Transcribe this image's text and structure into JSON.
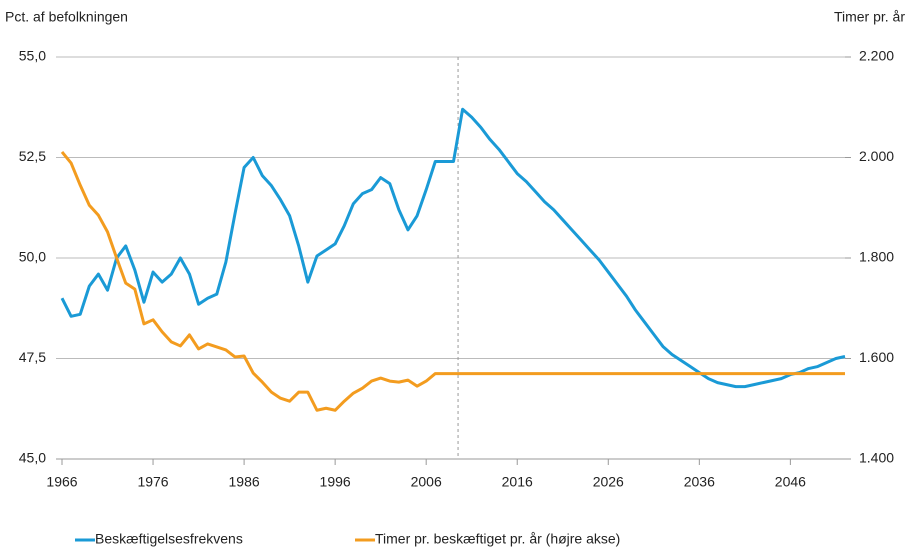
{
  "chart_data": {
    "type": "line",
    "y_label": "Pct. af befolkningen",
    "y2_label": "Timer pr. år",
    "x": [
      1966,
      1967,
      1968,
      1969,
      1970,
      1971,
      1972,
      1973,
      1974,
      1975,
      1976,
      1977,
      1978,
      1979,
      1980,
      1981,
      1982,
      1983,
      1984,
      1985,
      1986,
      1987,
      1988,
      1989,
      1990,
      1991,
      1992,
      1993,
      1994,
      1995,
      1996,
      1997,
      1998,
      1999,
      2000,
      2001,
      2002,
      2003,
      2004,
      2005,
      2006,
      2007,
      2008,
      2009,
      2010,
      2011,
      2012,
      2013,
      2014,
      2015,
      2016,
      2017,
      2018,
      2019,
      2020,
      2021,
      2022,
      2023,
      2024,
      2025,
      2026,
      2027,
      2028,
      2029,
      2030,
      2031,
      2032,
      2033,
      2034,
      2035,
      2036,
      2037,
      2038,
      2039,
      2040,
      2041,
      2042,
      2043,
      2044,
      2045,
      2046,
      2047,
      2048,
      2049,
      2050,
      2051,
      2052
    ],
    "series": [
      {
        "name": "Beskæftigelsesfrekvens",
        "color": "#1a9ad6",
        "values": [
          49.0,
          48.55,
          48.6,
          49.3,
          49.6,
          49.2,
          50.0,
          50.3,
          49.7,
          48.9,
          49.65,
          49.4,
          49.6,
          50.0,
          49.6,
          48.85,
          49.0,
          49.1,
          49.9,
          51.1,
          52.25,
          52.5,
          52.05,
          51.8,
          51.45,
          51.05,
          50.3,
          49.4,
          50.05,
          50.2,
          50.35,
          50.8,
          51.35,
          51.6,
          51.7,
          52.0,
          51.85,
          51.2,
          50.7,
          51.05,
          51.7,
          52.4,
          52.4,
          52.4,
          53.7,
          53.5,
          53.25,
          52.95,
          52.7,
          52.4,
          52.1,
          51.9,
          51.65,
          51.4,
          51.2,
          50.95,
          50.7,
          50.45,
          50.2,
          49.95,
          49.65,
          49.35,
          49.05,
          48.7,
          48.4,
          48.1,
          47.8,
          47.6,
          47.45,
          47.3,
          47.15,
          47.0,
          46.9,
          46.85,
          46.8,
          46.8,
          46.85,
          46.9,
          46.95,
          47.0,
          47.1,
          47.15,
          47.25,
          47.3,
          47.4,
          47.5,
          47.55
        ]
      },
      {
        "name": "Timer pr. beskæftiget pr. år  (højre akse)",
        "color": "#f39c1f",
        "axis": "y2",
        "values": [
          2011,
          1989,
          1945,
          1905,
          1885,
          1852,
          1800,
          1750,
          1738,
          1669,
          1677,
          1653,
          1633,
          1625,
          1647,
          1619,
          1629,
          1623,
          1617,
          1603,
          1605,
          1571,
          1553,
          1533,
          1521,
          1515,
          1533,
          1533,
          1497,
          1501,
          1497,
          1515,
          1531,
          1541,
          1555,
          1561,
          1555,
          1553,
          1557,
          1545,
          1555,
          1570,
          1570,
          1570,
          1570,
          1570,
          1570,
          1570,
          1570,
          1570,
          1570,
          1570,
          1570,
          1570,
          1570,
          1570,
          1570,
          1570,
          1570,
          1570,
          1570,
          1570,
          1570,
          1570,
          1570,
          1570,
          1570,
          1570,
          1570,
          1570,
          1570,
          1570,
          1570,
          1570,
          1570,
          1570,
          1570,
          1570,
          1570,
          1570,
          1570,
          1570,
          1570,
          1570,
          1570,
          1570,
          1570
        ]
      }
    ],
    "xlim": [
      1966,
      2052
    ],
    "xticks": [
      1966,
      1976,
      1986,
      1996,
      2006,
      2016,
      2026,
      2036,
      2046
    ],
    "ylim": [
      45,
      55
    ],
    "yticks": [
      {
        "value": 45,
        "label": "45,0"
      },
      {
        "value": 47.5,
        "label": "47,5"
      },
      {
        "value": 50,
        "label": "50,0"
      },
      {
        "value": 52.5,
        "label": "52,5"
      },
      {
        "value": 55,
        "label": "55,0"
      }
    ],
    "y2lim": [
      1400,
      2200
    ],
    "y2ticks": [
      {
        "value": 1400,
        "label": "1.400"
      },
      {
        "value": 1600,
        "label": "1.600"
      },
      {
        "value": 1800,
        "label": "1.800"
      },
      {
        "value": 2000,
        "label": "2.000"
      },
      {
        "value": 2200,
        "label": "2.200"
      }
    ],
    "vlines": [
      2009.5
    ],
    "grid": true,
    "legend": "bottom"
  }
}
